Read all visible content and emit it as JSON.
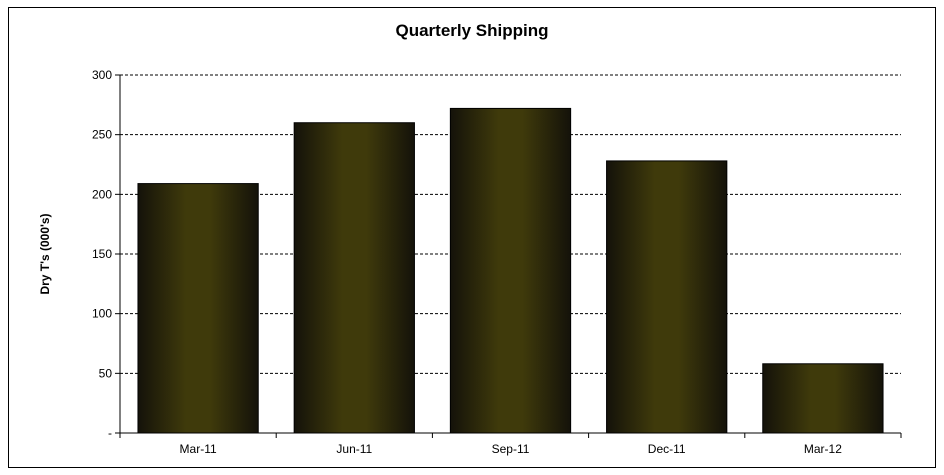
{
  "chart_data": {
    "type": "bar",
    "title": "Quarterly Shipping",
    "xlabel": "",
    "ylabel": "Dry T's (000's)",
    "categories": [
      "Mar-11",
      "Jun-11",
      "Sep-11",
      "Dec-11",
      "Mar-12"
    ],
    "values": [
      209,
      260,
      272,
      228,
      58
    ],
    "ylim": [
      0,
      300
    ],
    "yticks": [
      0,
      50,
      100,
      150,
      200,
      250,
      300
    ],
    "ytick_labels": [
      "-",
      "50",
      "100",
      "150",
      "200",
      "250",
      "300"
    ],
    "grid": true,
    "legend": "none",
    "colors": {
      "bar_dark": "#14120a",
      "bar_light": "#3f3a0b",
      "grid": "#000000"
    }
  }
}
